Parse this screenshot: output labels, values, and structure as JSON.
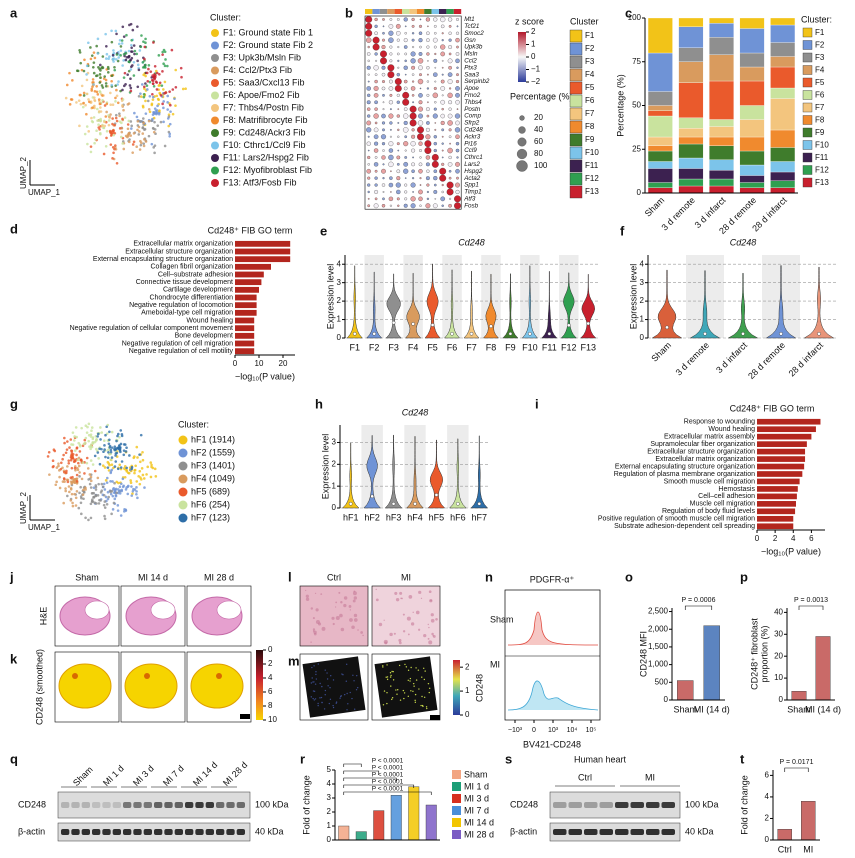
{
  "panel_labels": [
    "a",
    "b",
    "c",
    "d",
    "e",
    "f",
    "g",
    "h",
    "i",
    "j",
    "k",
    "l",
    "m",
    "n",
    "o",
    "p",
    "q",
    "r",
    "s",
    "t"
  ],
  "a": {
    "legend_title": "Cluster:",
    "x_label": "UMAP_1",
    "y_label": "UMAP_2",
    "clusters": [
      {
        "name": "F1: Ground state Fib 1",
        "color": "#f2c318"
      },
      {
        "name": "F2: Ground state Fib 2",
        "color": "#6f93d6"
      },
      {
        "name": "F3: Upk3b/Msln Fib",
        "color": "#8f8f8f"
      },
      {
        "name": "F4: Ccl2/Ptx3 Fib",
        "color": "#d99b5e"
      },
      {
        "name": "F5: Saa3/Cxcl13 Fib",
        "color": "#ea5a2c"
      },
      {
        "name": "F6: Apoe/Fmo2 Fib",
        "color": "#c9e39e"
      },
      {
        "name": "F7: Thbs4/Postn Fib",
        "color": "#f3c57e"
      },
      {
        "name": "F8: Matrifibrocyte Fib",
        "color": "#f08a2e"
      },
      {
        "name": "F9: Cd248/Ackr3 Fib",
        "color": "#3f7c2c"
      },
      {
        "name": "F10: Cthrc1/Ccl9 Fib",
        "color": "#7cc4ea"
      },
      {
        "name": "F11: Lars2/Hspg2 Fib",
        "color": "#3c2150"
      },
      {
        "name": "F12: Myofibroblast Fib",
        "color": "#2f9f50"
      },
      {
        "name": "F13: Atf3/Fosb Fib",
        "color": "#c8202e"
      }
    ]
  },
  "b": {
    "genes": [
      "Mt1",
      "Tcf21",
      "Smoc2",
      "Gsn",
      "Upk3b",
      "Msln",
      "Ccl2",
      "Ptx3",
      "Saa3",
      "Serpinb2",
      "Apoe",
      "Fmo2",
      "Thbs4",
      "Postn",
      "Comp",
      "Sfrp2",
      "Cd248",
      "Ackr3",
      "Pi16",
      "Ccl9",
      "Cthrc1",
      "Lars2",
      "Hspg2",
      "Acta2",
      "Spp1",
      "Timp1",
      "Atf3",
      "Fosb"
    ],
    "z_title": "z score",
    "z_ticks": [
      2,
      1,
      0,
      {
        "value": -1,
        "label": "−1"
      },
      {
        "value": -2,
        "label": "−2"
      }
    ],
    "pct_title": "Percentage (%)",
    "pct_ticks": [
      20,
      40,
      60,
      80,
      100
    ],
    "cluster_title": "Cluster",
    "clusters": [
      "F1",
      "F2",
      "F3",
      "F4",
      "F5",
      "F6",
      "F7",
      "F8",
      "F9",
      "F10",
      "F11",
      "F12",
      "F13"
    ]
  },
  "g": {
    "legend_title": "Cluster:",
    "x_label": "UMAP_1",
    "y_label": "UMAP_2",
    "clusters": [
      {
        "name": "hF1 (1914)",
        "color": "#f2c318"
      },
      {
        "name": "hF2 (1559)",
        "color": "#6f93d6"
      },
      {
        "name": "hF3 (1401)",
        "color": "#8f8f8f"
      },
      {
        "name": "hF4 (1049)",
        "color": "#d99b5e"
      },
      {
        "name": "hF5 (689)",
        "color": "#ea5a2c"
      },
      {
        "name": "hF6 (254)",
        "color": "#c9e39e"
      },
      {
        "name": "hF7 (123)",
        "color": "#2d6ea8"
      }
    ]
  },
  "j": {
    "columns": [
      "Sham",
      "MI 14 d",
      "MI 28 d"
    ],
    "row_label": "H&E"
  },
  "k": {
    "row_label": "CD248 (smoothed)",
    "ticks": [
      0,
      2,
      4,
      6,
      8,
      10
    ]
  },
  "l": {
    "columns": [
      "Ctrl",
      "MI"
    ]
  },
  "m": {
    "bar_label": "CD248",
    "ticks": [
      0,
      1,
      2
    ]
  },
  "n": {
    "title": "PDGFR-α⁺",
    "rows": [
      "Sham",
      "MI"
    ],
    "x_label": "BV421-CD248",
    "x_ticks": [
      "−10³",
      "0",
      "10³",
      "10⁴",
      "10⁵"
    ]
  },
  "q": {
    "lanes": [
      "Sham",
      "MI 1 d",
      "MI 3 d",
      "MI 7 d",
      "MI 14 d",
      "MI 28 d"
    ],
    "rows": [
      "CD248",
      "β-actin"
    ],
    "sizes": [
      "100 kDa",
      "40 kDa"
    ]
  },
  "s": {
    "title": "Human heart",
    "groups": [
      "Ctrl",
      "MI"
    ],
    "rows": [
      "CD248",
      "β-actin"
    ],
    "sizes": [
      "100 kDa",
      "40 kDa"
    ]
  },
  "chart_data": [
    {
      "type": "stacked_bar",
      "ylabel": "Percentage (%)",
      "legend_title": "Cluster:",
      "categories": [
        "Sham",
        "3 d remote",
        "3 d infarct",
        "28 d remote",
        "28 d infarct"
      ],
      "ylim": [
        0,
        100
      ],
      "yticks": [
        0,
        25,
        50,
        75,
        100
      ],
      "series": [
        {
          "name": "F1",
          "color": "#f2c318",
          "values": [
            20,
            5,
            3,
            6,
            4
          ]
        },
        {
          "name": "F2",
          "color": "#6f93d6",
          "values": [
            22,
            12,
            8,
            14,
            10
          ]
        },
        {
          "name": "F3",
          "color": "#8f8f8f",
          "values": [
            8,
            8,
            10,
            8,
            8
          ]
        },
        {
          "name": "F4",
          "color": "#d99b5e",
          "values": [
            3,
            12,
            15,
            8,
            6
          ]
        },
        {
          "name": "F5",
          "color": "#ea5a2c",
          "values": [
            3,
            20,
            22,
            14,
            12
          ]
        },
        {
          "name": "F6",
          "color": "#c9e39e",
          "values": [
            12,
            6,
            4,
            8,
            6
          ]
        },
        {
          "name": "F7",
          "color": "#f3c57e",
          "values": [
            5,
            5,
            6,
            10,
            18
          ]
        },
        {
          "name": "F8",
          "color": "#f08a2e",
          "values": [
            3,
            4,
            5,
            8,
            10
          ]
        },
        {
          "name": "F9",
          "color": "#3f7c2c",
          "values": [
            6,
            8,
            8,
            8,
            8
          ]
        },
        {
          "name": "F10",
          "color": "#7cc4ea",
          "values": [
            4,
            6,
            6,
            6,
            6
          ]
        },
        {
          "name": "F11",
          "color": "#3c2150",
          "values": [
            8,
            6,
            5,
            4,
            5
          ]
        },
        {
          "name": "F12",
          "color": "#2f9f50",
          "values": [
            3,
            4,
            4,
            3,
            4
          ]
        },
        {
          "name": "F13",
          "color": "#c8202e",
          "values": [
            3,
            4,
            4,
            3,
            3
          ]
        }
      ]
    },
    {
      "type": "hbar",
      "title": "Cd248⁺ FIB GO term",
      "xlabel": "−log₁₀(P value)",
      "color": "#b3261e",
      "categories": [
        "Extracellular matrix organization",
        "Extracellular structure organization",
        "External encapsulating structure organization",
        "Collagen fibril organization",
        "Cell–substrate adhesion",
        "Connective tissue development",
        "Cartilage development",
        "Chondrocyte differentiation",
        "Negative regulation of locomotion",
        "Ameboidal-type cell migration",
        "Wound healing",
        "Negative regulation of cellular component movement",
        "Bone development",
        "Negative regulation of cell migration",
        "Negative regulation of cell motility"
      ],
      "values": [
        23,
        23,
        23,
        15,
        12,
        11,
        10,
        9,
        9,
        9,
        8,
        8,
        8,
        8,
        8
      ],
      "xlim": [
        0,
        25
      ],
      "xticks": [
        0,
        10,
        20
      ]
    },
    {
      "type": "violin",
      "title": "Cd248",
      "ylabel": "Expression level",
      "categories": [
        "F1",
        "F2",
        "F3",
        "F4",
        "F5",
        "F6",
        "F7",
        "F8",
        "F9",
        "F10",
        "F11",
        "F12",
        "F13"
      ],
      "colors": [
        "#f2c318",
        "#6f93d6",
        "#8f8f8f",
        "#d99b5e",
        "#ea5a2c",
        "#c9e39e",
        "#f3c57e",
        "#f08a2e",
        "#3f7c2c",
        "#7cc4ea",
        "#3c2150",
        "#2f9f50",
        "#c8202e"
      ],
      "ylim": [
        0,
        4.5
      ],
      "yticks": [
        0,
        1,
        2,
        3,
        4
      ]
    },
    {
      "type": "violin",
      "title": "Cd248",
      "ylabel": "Expression level",
      "categories": [
        "Sham",
        "3 d remote",
        "3 d infarct",
        "28 d remote",
        "28 d infarct"
      ],
      "colors": [
        "#d9603b",
        "#3fa7b8",
        "#3f9f4f",
        "#6f93d6",
        "#e8957a"
      ],
      "ylim": [
        0,
        4.5
      ],
      "yticks": [
        0,
        1,
        2,
        3,
        4
      ]
    },
    {
      "type": "violin",
      "title": "Cd248",
      "ylabel": "Expression level",
      "categories": [
        "hF1",
        "hF2",
        "hF3",
        "hF4",
        "hF5",
        "hF6",
        "hF7"
      ],
      "colors": [
        "#f2c318",
        "#6f93d6",
        "#8f8f8f",
        "#d99b5e",
        "#ea5a2c",
        "#c9e39e",
        "#2d6ea8"
      ],
      "ylim": [
        0,
        3.8
      ],
      "yticks": [
        0,
        1,
        2,
        3
      ]
    },
    {
      "type": "hbar",
      "title": "Cd248⁺ FIB GO term",
      "xlabel": "−log₁₀(P value)",
      "color": "#b3261e",
      "categories": [
        "Response to wounding",
        "Wound healing",
        "Extracellular matrix assembly",
        "Supramolecular fiber organization",
        "Extracellular structure organization",
        "Extracellular matrix organization",
        "External encapsulating structure organization",
        "Regulation of plasma membrane organization",
        "Smooth muscle cell migration",
        "Hemostasis",
        "Cell–cell adhesion",
        "Muscle cell migration",
        "Regulation of body fluid levels",
        "Positive regulation of smooth muscle cell migration",
        "Substrate adhesion-dependent cell spreading"
      ],
      "values": [
        7,
        6.5,
        6,
        5.5,
        5.3,
        5.3,
        5.2,
        5,
        4.7,
        4.5,
        4.4,
        4.3,
        4.2,
        4,
        4
      ],
      "xlim": [
        0,
        7.5
      ],
      "xticks": [
        0,
        2,
        4,
        6
      ]
    },
    {
      "type": "bar",
      "ylabel": "CD248 MFI",
      "categories": [
        "Sham",
        "MI (14 d)"
      ],
      "values": [
        550,
        2100
      ],
      "colors": [
        "#c0504d",
        "#3f6fb5"
      ],
      "pvalue": "P = 0.0006",
      "ylim": [
        0,
        2600
      ],
      "yticks": [
        0,
        500,
        {
          "value": 1000,
          "label": "1,000"
        },
        {
          "value": 1500,
          "label": "1,500"
        },
        {
          "value": 2000,
          "label": "2,000"
        },
        {
          "value": 2500,
          "label": "2,500"
        }
      ]
    },
    {
      "type": "bar",
      "ylabel": [
        "CD248⁺ fibroblast",
        "proportion (%)"
      ],
      "categories": [
        "Sham",
        "MI (14 d)"
      ],
      "values": [
        4,
        29
      ],
      "colors": [
        "#c0504d",
        "#c0504d"
      ],
      "pvalue": "P = 0.0013",
      "ylim": [
        0,
        42
      ],
      "yticks": [
        0,
        10,
        20,
        30,
        40
      ]
    },
    {
      "type": "bar",
      "ylabel": "Fold of change",
      "legend": true,
      "categories": [
        "Sham",
        "MI 1 d",
        "MI 3 d",
        "MI 7 d",
        "MI 14 d",
        "MI 28 d"
      ],
      "values": [
        1,
        0.6,
        2.1,
        3.2,
        3.8,
        2.5
      ],
      "colors": [
        "#f2a582",
        "#1b9e77",
        "#d7301f",
        "#4a8fd9",
        "#f2c500",
        "#7b5cc4"
      ],
      "pvalues": [
        "P < 0.0001",
        "P < 0.0001",
        "P < 0.0001",
        "P < 0.0001",
        "P < 0.0001"
      ],
      "ylim": [
        0,
        5
      ],
      "yticks": [
        0,
        1,
        2,
        3,
        4,
        5
      ]
    },
    {
      "type": "bar",
      "ylabel": "Fold of change",
      "categories": [
        "Ctrl",
        "MI"
      ],
      "values": [
        1,
        3.6
      ],
      "colors": [
        "#c0504d",
        "#c0504d"
      ],
      "pvalue": "P = 0.0171",
      "ylim": [
        0,
        6.5
      ],
      "yticks": [
        0,
        2,
        4,
        6
      ]
    }
  ]
}
